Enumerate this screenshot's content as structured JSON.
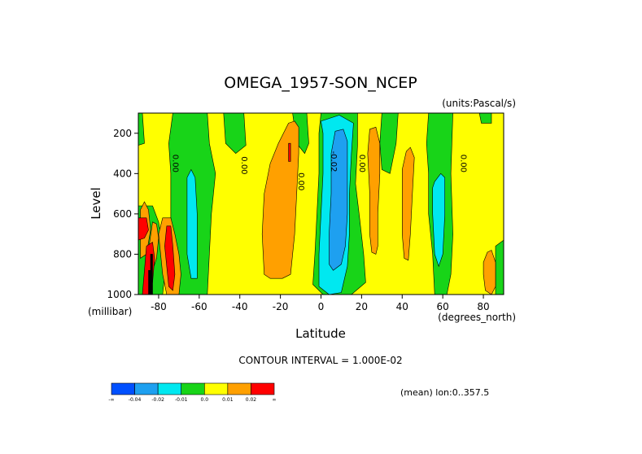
{
  "chart_data": {
    "type": "contour",
    "title": "OMEGA_1957-SON_NCEP",
    "units_label": "(units:Pascal/s)",
    "xlabel": "Latitude",
    "ylabel": "Level",
    "x_units": "(degrees_north)",
    "y_units": "(millibar)",
    "xlim": [
      -90,
      90
    ],
    "ylim": [
      1000,
      100
    ],
    "x_ticks": [
      -80,
      -60,
      -40,
      -20,
      0,
      20,
      40,
      60,
      80
    ],
    "x_tick_labels": [
      "-80",
      "-60",
      "-40",
      "-20",
      "0",
      "20",
      "40",
      "60",
      "80"
    ],
    "y_ticks": [
      200,
      400,
      600,
      800,
      1000
    ],
    "y_tick_labels": [
      "200",
      "400",
      "600",
      "800",
      "1000"
    ],
    "contour_interval_text": "CONTOUR INTERVAL = 1.000E-02",
    "mean_text": "(mean) lon:0..357.5",
    "contour_labels": [
      {
        "text": "0.00",
        "lat": -73,
        "lev": 350
      },
      {
        "text": "0.00",
        "lat": -39,
        "lev": 360
      },
      {
        "text": "0.00",
        "lat": -11,
        "lev": 440
      },
      {
        "text": "-0.02",
        "lat": 5,
        "lev": 340
      },
      {
        "text": "0.00",
        "lat": 19,
        "lev": 350
      },
      {
        "text": "0.00",
        "lat": 69,
        "lev": 350
      }
    ],
    "colorbar": {
      "labels": [
        "-∞",
        "-0.04",
        "-0.02",
        "-0.01",
        "0.0",
        "0.01",
        "0.02",
        "∞"
      ],
      "colors": [
        "#0050ff",
        "#1ea0f0",
        "#00e8f0",
        "#18d418",
        "#ffff00",
        "#ffa000",
        "#ff0000"
      ]
    },
    "regions": [
      {
        "value": "0.0 to 0.01",
        "color": "#ffff00",
        "pts": [
          [
            -90,
            100
          ],
          [
            90,
            100
          ],
          [
            90,
            1000
          ],
          [
            -90,
            1000
          ]
        ]
      },
      {
        "value": "-0.01 to 0.0",
        "color": "#18d418",
        "pts": [
          [
            -73,
            100
          ],
          [
            -56,
            100
          ],
          [
            -55,
            250
          ],
          [
            -52,
            400
          ],
          [
            -54,
            600
          ],
          [
            -55,
            800
          ],
          [
            -56,
            1000
          ],
          [
            -73,
            1000
          ],
          [
            -74,
            800
          ],
          [
            -74,
            600
          ],
          [
            -74,
            400
          ],
          [
            -75,
            250
          ]
        ]
      },
      {
        "value": "-0.01 to 0.0",
        "color": "#18d418",
        "pts": [
          [
            -90,
            100
          ],
          [
            -88,
            100
          ],
          [
            -87,
            250
          ],
          [
            -90,
            260
          ]
        ]
      },
      {
        "value": "-0.01 to 0.0",
        "color": "#18d418",
        "pts": [
          [
            -48,
            100
          ],
          [
            -38,
            100
          ],
          [
            -37,
            260
          ],
          [
            -42,
            300
          ],
          [
            -47,
            250
          ]
        ]
      },
      {
        "value": "-0.01 to 0.0",
        "color": "#18d418",
        "pts": [
          [
            -14,
            100
          ],
          [
            -7,
            100
          ],
          [
            -6,
            250
          ],
          [
            -8,
            300
          ],
          [
            -12,
            250
          ]
        ]
      },
      {
        "value": "-0.01 to 0.0",
        "color": "#18d418",
        "pts": [
          [
            0,
            100
          ],
          [
            18,
            100
          ],
          [
            18,
            260
          ],
          [
            17,
            450
          ],
          [
            19,
            620
          ],
          [
            21,
            800
          ],
          [
            22,
            940
          ],
          [
            15,
            1000
          ],
          [
            1,
            1000
          ],
          [
            -4,
            950
          ],
          [
            -3,
            800
          ],
          [
            -2,
            600
          ],
          [
            -1,
            400
          ],
          [
            -1,
            200
          ]
        ]
      },
      {
        "value": "-0.01 to 0.0",
        "color": "#18d418",
        "pts": [
          [
            30,
            100
          ],
          [
            38,
            100
          ],
          [
            37,
            250
          ],
          [
            34,
            400
          ],
          [
            30,
            380
          ],
          [
            29,
            250
          ]
        ]
      },
      {
        "value": "-0.01 to 0.0",
        "color": "#18d418",
        "pts": [
          [
            53,
            100
          ],
          [
            65,
            100
          ],
          [
            64,
            400
          ],
          [
            65,
            700
          ],
          [
            64,
            900
          ],
          [
            62,
            1000
          ],
          [
            56,
            1000
          ],
          [
            55,
            800
          ],
          [
            53,
            600
          ],
          [
            53,
            400
          ],
          [
            52,
            250
          ]
        ]
      },
      {
        "value": "-0.01 to 0.0",
        "color": "#18d418",
        "pts": [
          [
            78,
            100
          ],
          [
            84,
            100
          ],
          [
            84,
            150
          ],
          [
            79,
            150
          ]
        ]
      },
      {
        "value": "-0.01 to 0.0",
        "color": "#18d418",
        "pts": [
          [
            86,
            760
          ],
          [
            90,
            730
          ],
          [
            90,
            1000
          ],
          [
            86,
            1000
          ]
        ]
      },
      {
        "value": "-0.01 to 0.0",
        "color": "#18d418",
        "pts": [
          [
            -90,
            560
          ],
          [
            -83,
            560
          ],
          [
            -80,
            640
          ],
          [
            -78,
            760
          ],
          [
            -77,
            900
          ],
          [
            -78,
            1000
          ],
          [
            -90,
            1000
          ]
        ]
      },
      {
        "value": "-0.02 to -0.01",
        "color": "#00e8f0",
        "pts": [
          [
            -64,
            380
          ],
          [
            -62,
            420
          ],
          [
            -61,
            600
          ],
          [
            -61,
            800
          ],
          [
            -61,
            920
          ],
          [
            -64,
            920
          ],
          [
            -66,
            800
          ],
          [
            -66,
            600
          ],
          [
            -66,
            420
          ]
        ]
      },
      {
        "value": "-0.02 to -0.01",
        "color": "#00e8f0",
        "pts": [
          [
            0,
            140
          ],
          [
            9,
            110
          ],
          [
            16,
            150
          ],
          [
            15,
            300
          ],
          [
            14,
            500
          ],
          [
            14,
            700
          ],
          [
            13,
            860
          ],
          [
            10,
            990
          ],
          [
            4,
            1000
          ],
          [
            -1,
            960
          ],
          [
            -1,
            800
          ],
          [
            0,
            600
          ],
          [
            1,
            400
          ],
          [
            1,
            200
          ]
        ]
      },
      {
        "value": "-0.02 to -0.01",
        "color": "#00e8f0",
        "pts": [
          [
            56,
            440
          ],
          [
            59,
            400
          ],
          [
            61,
            420
          ],
          [
            61,
            600
          ],
          [
            60,
            800
          ],
          [
            58,
            860
          ],
          [
            56,
            800
          ],
          [
            55,
            600
          ],
          [
            55,
            470
          ]
        ]
      },
      {
        "value": "-0.04 to -0.02",
        "color": "#1ea0f0",
        "pts": [
          [
            7,
            190
          ],
          [
            11,
            180
          ],
          [
            13,
            240
          ],
          [
            13,
            400
          ],
          [
            13,
            600
          ],
          [
            12,
            760
          ],
          [
            10,
            850
          ],
          [
            6,
            880
          ],
          [
            4,
            850
          ],
          [
            4,
            700
          ],
          [
            5,
            500
          ],
          [
            5,
            300
          ]
        ]
      },
      {
        "value": "0.01 to 0.02",
        "color": "#ffa000",
        "pts": [
          [
            -16,
            150
          ],
          [
            -13,
            140
          ],
          [
            -11,
            170
          ],
          [
            -11,
            300
          ],
          [
            -12,
            500
          ],
          [
            -13,
            700
          ],
          [
            -15,
            900
          ],
          [
            -19,
            920
          ],
          [
            -25,
            920
          ],
          [
            -28,
            900
          ],
          [
            -29,
            700
          ],
          [
            -28,
            500
          ],
          [
            -25,
            350
          ],
          [
            -21,
            250
          ]
        ]
      },
      {
        "value": "0.01 to 0.02",
        "color": "#ffa000",
        "pts": [
          [
            24,
            180
          ],
          [
            27,
            170
          ],
          [
            29,
            250
          ],
          [
            29,
            400
          ],
          [
            28,
            600
          ],
          [
            28,
            760
          ],
          [
            27,
            800
          ],
          [
            25,
            790
          ],
          [
            24,
            700
          ],
          [
            24,
            500
          ],
          [
            23,
            300
          ]
        ]
      },
      {
        "value": "0.01 to 0.02",
        "color": "#ffa000",
        "pts": [
          [
            42,
            290
          ],
          [
            44,
            270
          ],
          [
            46,
            320
          ],
          [
            45,
            500
          ],
          [
            44,
            700
          ],
          [
            43,
            830
          ],
          [
            41,
            820
          ],
          [
            40,
            700
          ],
          [
            40,
            500
          ],
          [
            40,
            380
          ]
        ]
      },
      {
        "value": "0.01 to 0.02",
        "color": "#ffa000",
        "pts": [
          [
            82,
            790
          ],
          [
            84,
            780
          ],
          [
            86,
            840
          ],
          [
            86,
            960
          ],
          [
            84,
            1000
          ],
          [
            81,
            980
          ],
          [
            80,
            900
          ],
          [
            80,
            840
          ]
        ]
      },
      {
        "value": "0.01 to 0.02",
        "color": "#ffa000",
        "pts": [
          [
            -89,
            580
          ],
          [
            -87,
            540
          ],
          [
            -85,
            580
          ],
          [
            -84,
            680
          ],
          [
            -86,
            800
          ],
          [
            -89,
            820
          ]
        ]
      },
      {
        "value": "0.01 to 0.02",
        "color": "#ffa000",
        "pts": [
          [
            -78,
            620
          ],
          [
            -74,
            620
          ],
          [
            -72,
            700
          ],
          [
            -70,
            800
          ],
          [
            -69,
            900
          ],
          [
            -70,
            1000
          ],
          [
            -76,
            1000
          ],
          [
            -78,
            900
          ],
          [
            -79,
            800
          ],
          [
            -80,
            700
          ]
        ]
      },
      {
        "value": "0.01 to 0.02",
        "color": "#ffa000",
        "pts": [
          [
            -83,
            640
          ],
          [
            -81,
            650
          ],
          [
            -80,
            720
          ],
          [
            -81,
            820
          ],
          [
            -83,
            880
          ],
          [
            -85,
            780
          ]
        ]
      },
      {
        "value": "> 0.02",
        "color": "#ff0000",
        "pts": [
          [
            -16,
            250
          ],
          [
            -15,
            250
          ],
          [
            -15,
            340
          ],
          [
            -16,
            340
          ]
        ]
      },
      {
        "value": "> 0.02",
        "color": "#ff0000",
        "pts": [
          [
            -90,
            620
          ],
          [
            -86,
            620
          ],
          [
            -85,
            680
          ],
          [
            -87,
            720
          ],
          [
            -90,
            730
          ]
        ]
      },
      {
        "value": "> 0.02",
        "color": "#ff0000",
        "pts": [
          [
            -76,
            660
          ],
          [
            -74,
            660
          ],
          [
            -73,
            760
          ],
          [
            -72,
            900
          ],
          [
            -73,
            980
          ],
          [
            -75,
            960
          ],
          [
            -76,
            860
          ],
          [
            -77,
            760
          ]
        ]
      },
      {
        "value": "> 0.02",
        "color": "#ff0000",
        "pts": [
          [
            -86,
            760
          ],
          [
            -83,
            740
          ],
          [
            -82,
            820
          ],
          [
            -83,
            940
          ],
          [
            -85,
            1000
          ],
          [
            -88,
            1000
          ],
          [
            -87,
            880
          ]
        ]
      },
      {
        "value": "undefined",
        "color": "#000000",
        "pts": [
          [
            -84,
            800
          ],
          [
            -83,
            800
          ],
          [
            -83,
            1000
          ],
          [
            -84,
            1000
          ]
        ]
      },
      {
        "value": "undefined",
        "color": "#000000",
        "pts": [
          [
            -85,
            880
          ],
          [
            -84,
            880
          ],
          [
            -84,
            1000
          ],
          [
            -85,
            1000
          ]
        ]
      }
    ]
  }
}
